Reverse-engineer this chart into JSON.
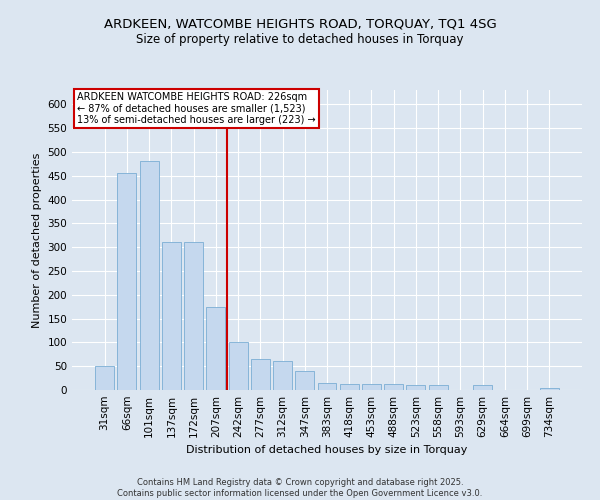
{
  "title1": "ARDKEEN, WATCOMBE HEIGHTS ROAD, TORQUAY, TQ1 4SG",
  "title2": "Size of property relative to detached houses in Torquay",
  "xlabel": "Distribution of detached houses by size in Torquay",
  "ylabel": "Number of detached properties",
  "categories": [
    "31sqm",
    "66sqm",
    "101sqm",
    "137sqm",
    "172sqm",
    "207sqm",
    "242sqm",
    "277sqm",
    "312sqm",
    "347sqm",
    "383sqm",
    "418sqm",
    "453sqm",
    "488sqm",
    "523sqm",
    "558sqm",
    "593sqm",
    "629sqm",
    "664sqm",
    "699sqm",
    "734sqm"
  ],
  "values": [
    50,
    455,
    480,
    310,
    310,
    175,
    100,
    65,
    60,
    40,
    15,
    12,
    12,
    12,
    10,
    10,
    0,
    10,
    0,
    0,
    5
  ],
  "bar_color": "#c5d8ee",
  "bar_edge_color": "#7aadd4",
  "vline_color": "#cc0000",
  "vline_pos": 6.0,
  "annotation_text": "ARDKEEN WATCOMBE HEIGHTS ROAD: 226sqm\n← 87% of detached houses are smaller (1,523)\n13% of semi-detached houses are larger (223) →",
  "annotation_box_color": "#ffffff",
  "annotation_box_edge": "#cc0000",
  "ylim": [
    0,
    630
  ],
  "yticks": [
    0,
    50,
    100,
    150,
    200,
    250,
    300,
    350,
    400,
    450,
    500,
    550,
    600
  ],
  "background_color": "#dce6f1",
  "footer": "Contains HM Land Registry data © Crown copyright and database right 2025.\nContains public sector information licensed under the Open Government Licence v3.0.",
  "title_fontsize": 9.5,
  "subtitle_fontsize": 8.5,
  "axis_label_fontsize": 8,
  "tick_fontsize": 7.5,
  "annotation_fontsize": 7,
  "footer_fontsize": 6
}
